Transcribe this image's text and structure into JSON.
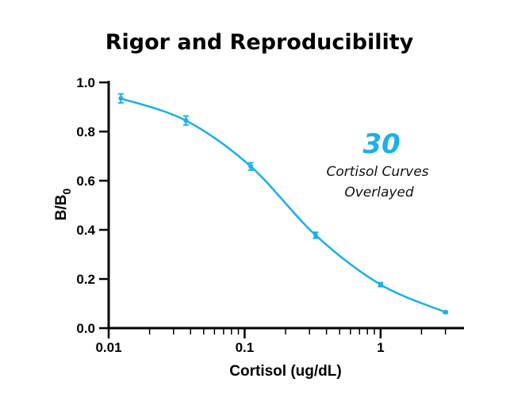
{
  "chart_data": {
    "type": "line",
    "title": "Rigor and Reproducibility",
    "xlabel": "Cortisol (ug/dL)",
    "ylabel_main": "B/B",
    "ylabel_sub": "0",
    "x_scale": "log",
    "xlim": [
      0.01,
      4
    ],
    "ylim": [
      0.0,
      1.0
    ],
    "x_ticks": [
      {
        "value": 0.01,
        "label": "0.01"
      },
      {
        "value": 0.1,
        "label": "0.1"
      },
      {
        "value": 1,
        "label": "1"
      }
    ],
    "y_ticks": [
      {
        "value": 0.0,
        "label": "0.0"
      },
      {
        "value": 0.2,
        "label": "0.2"
      },
      {
        "value": 0.4,
        "label": "0.4"
      },
      {
        "value": 0.6,
        "label": "0.6"
      },
      {
        "value": 0.8,
        "label": "0.8"
      },
      {
        "value": 1.0,
        "label": "1.0"
      }
    ],
    "series": [
      {
        "points": [
          {
            "x": 0.0123,
            "y": 0.935,
            "err": 0.018
          },
          {
            "x": 0.037,
            "y": 0.845,
            "err": 0.018
          },
          {
            "x": 0.111,
            "y": 0.658,
            "err": 0.015
          },
          {
            "x": 0.333,
            "y": 0.378,
            "err": 0.012
          },
          {
            "x": 1.0,
            "y": 0.177,
            "err": 0.008
          },
          {
            "x": 3.0,
            "y": 0.065,
            "err": 0.004
          }
        ],
        "color": "#1ab0ea"
      }
    ],
    "annotation": {
      "number": "30",
      "line1": "Cortisol Curves",
      "line2": "Overlayed"
    },
    "grid": false,
    "legend": "none"
  }
}
